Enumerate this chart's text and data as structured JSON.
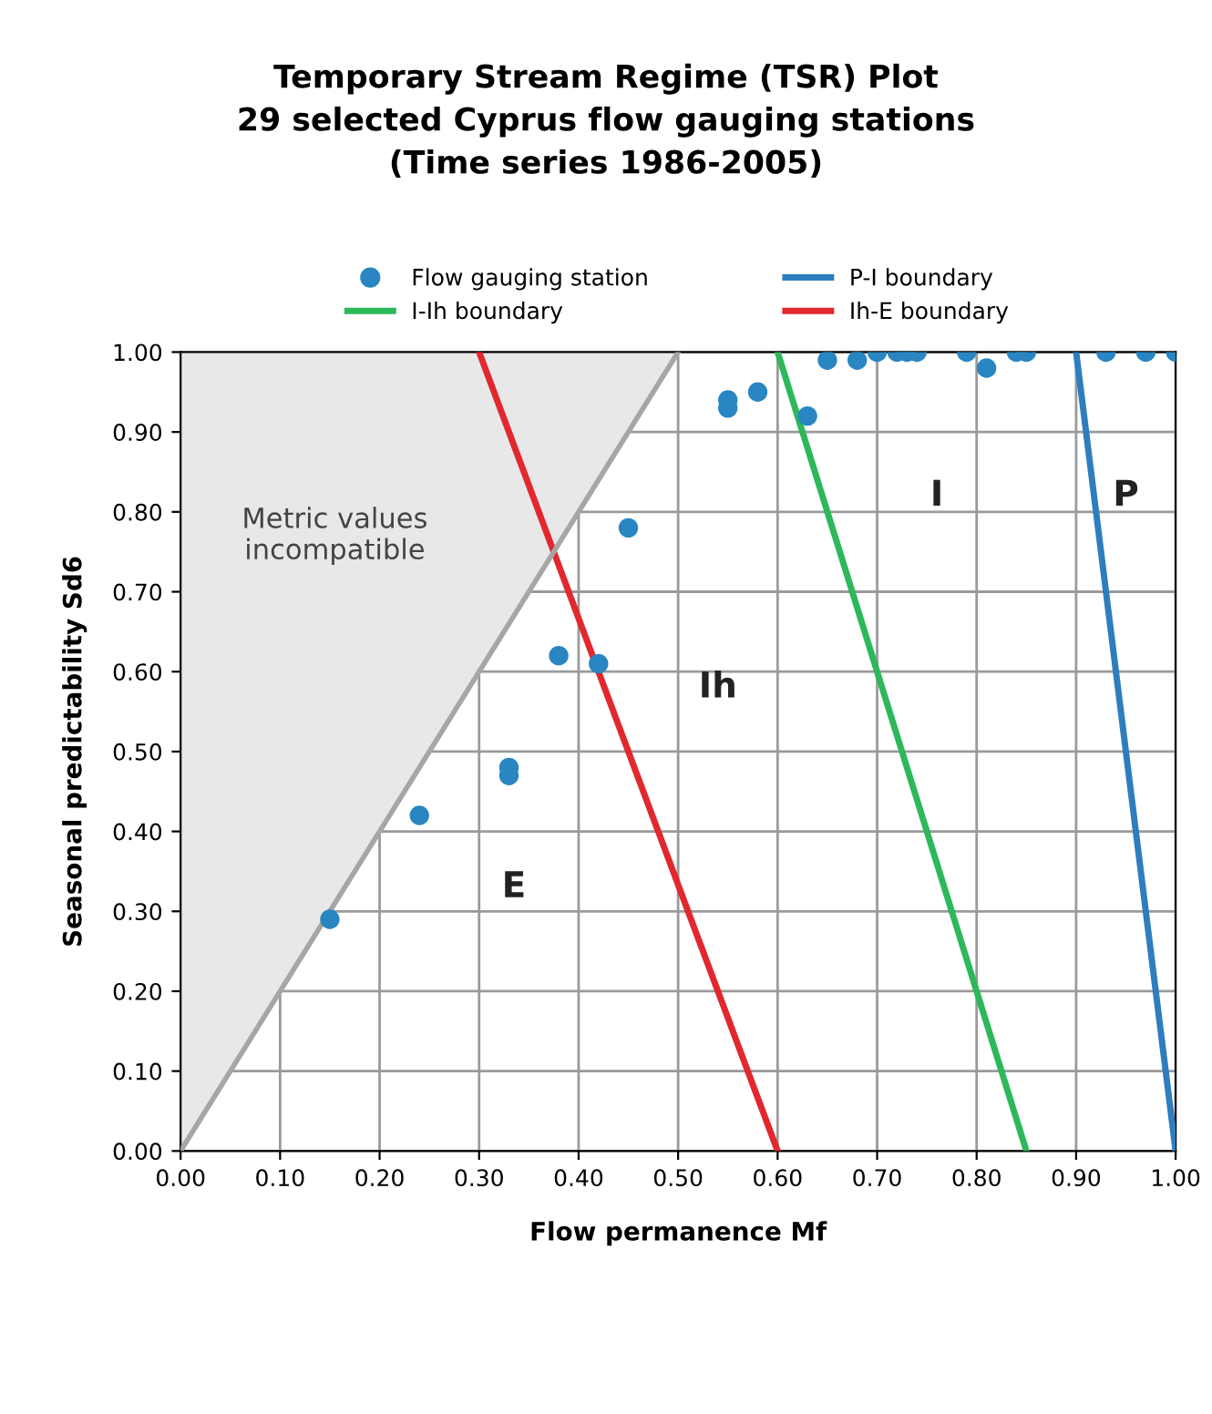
{
  "chart_data": {
    "type": "scatter",
    "title": "Temporary Stream Regime (TSR) Plot\n29 selected Cyprus flow gauging stations\n(Time series 1986-2005)",
    "xlabel": "Flow permanence Mf",
    "ylabel": "Seasonal predictability Sd6",
    "series": [
      {
        "name": "Flow gauging station",
        "color": "#2a86c2",
        "x": [
          0.15,
          0.24,
          0.33,
          0.33,
          0.38,
          0.42,
          0.45,
          0.55,
          0.55,
          0.58,
          0.63,
          0.65,
          0.68,
          0.7,
          0.72,
          0.73,
          0.74,
          0.79,
          0.81,
          0.84,
          0.85,
          0.93,
          0.97,
          1.0
        ],
        "values": [
          0.29,
          0.42,
          0.48,
          0.47,
          0.62,
          0.61,
          0.78,
          0.93,
          0.94,
          0.95,
          0.92,
          0.99,
          0.99,
          1.0,
          1.0,
          1.0,
          1.0,
          1.0,
          0.98,
          1.0,
          1.0,
          1.0,
          1.0,
          1.0
        ],
        "marker": "circle"
      },
      {
        "name": "I-Ih boundary",
        "type": "line",
        "color": "#2db85a",
        "x": [
          0.6,
          0.85
        ],
        "values": [
          1.0,
          0.0
        ],
        "marker": "none"
      },
      {
        "name": "P-I boundary",
        "type": "line",
        "color": "#2e7dbf",
        "x": [
          0.9,
          1.0
        ],
        "values": [
          1.0,
          0.0
        ],
        "marker": "none"
      },
      {
        "name": "Ih-E boundary",
        "type": "line",
        "color": "#e0282e",
        "x": [
          0.3,
          0.6
        ],
        "values": [
          1.0,
          0.0
        ],
        "marker": "none"
      },
      {
        "type": "line",
        "color": "#a6a6a6",
        "x": [
          0.0,
          0.5
        ],
        "values": [
          0.0,
          1.0
        ],
        "lower": [
          0.0,
          1.0
        ],
        "upper": [
          1.0,
          1.0
        ],
        "marker": "none"
      }
    ],
    "annotations": [
      "Metric values\nincompatible",
      "E",
      "Ih",
      "I",
      "P"
    ],
    "xlim": [
      0.0,
      1.0
    ],
    "ylim": [
      0.0,
      1.0
    ],
    "xticks": [
      {
        "value": 0.0,
        "label": "0.00"
      },
      {
        "value": 0.1,
        "label": "0.10"
      },
      {
        "value": 0.2,
        "label": "0.20"
      },
      {
        "value": 0.3,
        "label": "0.30"
      },
      {
        "value": 0.4,
        "label": "0.40"
      },
      {
        "value": 0.5,
        "label": "0.50"
      },
      {
        "value": 0.6,
        "label": "0.60"
      },
      {
        "value": 0.7,
        "label": "0.70"
      },
      {
        "value": 0.8,
        "label": "0.80"
      },
      {
        "value": 0.9,
        "label": "0.90"
      },
      {
        "value": 1.0,
        "label": "1.00"
      }
    ],
    "yticks": [
      {
        "value": 0.0,
        "label": "0.00"
      },
      {
        "value": 0.1,
        "label": "0.10"
      },
      {
        "value": 0.2,
        "label": "0.20"
      },
      {
        "value": 0.3,
        "label": "0.30"
      },
      {
        "value": 0.4,
        "label": "0.40"
      },
      {
        "value": 0.5,
        "label": "0.50"
      },
      {
        "value": 0.6,
        "label": "0.60"
      },
      {
        "value": 0.7,
        "label": "0.70"
      },
      {
        "value": 0.8,
        "label": "0.80"
      },
      {
        "value": 0.9,
        "label": "0.90"
      },
      {
        "value": 1.0,
        "label": "1.00"
      }
    ],
    "grid": true,
    "legend": "top"
  }
}
